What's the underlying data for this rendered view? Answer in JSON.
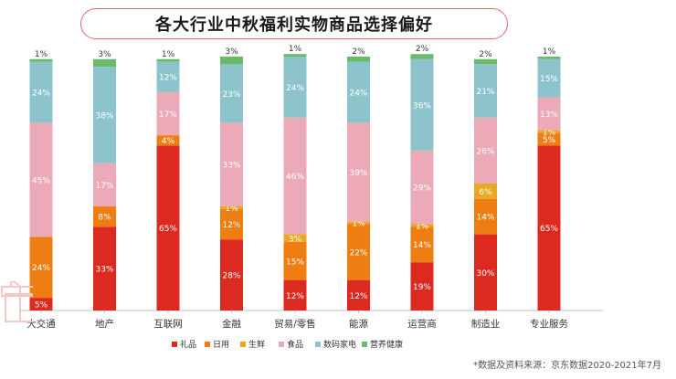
{
  "title": "各大行业中秋福利实物商品选择偏好",
  "source_note": "*数据及资料来源：京东数据2020-2021年7月",
  "colors": {
    "礼品": "#dc2a20",
    "日用": "#ee7d12",
    "生鲜": "#e8a820",
    "食品": "#ecaab8",
    "数码家电": "#8dc4cc",
    "营养健康": "#69bb6a",
    "title_border": "#e06a66"
  },
  "chart_data": {
    "type": "bar",
    "stacked": true,
    "percent": true,
    "title": "各大行业中秋福利实物商品选择偏好",
    "categories": [
      "大交通",
      "地产",
      "互联网",
      "金融",
      "贸易/零售",
      "能源",
      "运营商",
      "制造业",
      "专业服务"
    ],
    "series": [
      {
        "name": "礼品",
        "values": [
          5,
          33,
          65,
          28,
          12,
          12,
          19,
          30,
          65
        ]
      },
      {
        "name": "日用",
        "values": [
          24,
          8,
          4,
          12,
          15,
          22,
          14,
          14,
          5
        ]
      },
      {
        "name": "生鲜",
        "values": [
          0,
          0,
          0,
          1,
          3,
          1,
          1,
          6,
          1
        ]
      },
      {
        "name": "食品",
        "values": [
          45,
          17,
          17,
          33,
          46,
          39,
          29,
          26,
          13
        ]
      },
      {
        "name": "数码家电",
        "values": [
          24,
          38,
          12,
          23,
          24,
          24,
          36,
          21,
          15
        ]
      },
      {
        "name": "营养健康",
        "values": [
          1,
          3,
          1,
          3,
          1,
          2,
          2,
          2,
          1
        ]
      }
    ],
    "legend_position": "bottom",
    "grid": false
  }
}
